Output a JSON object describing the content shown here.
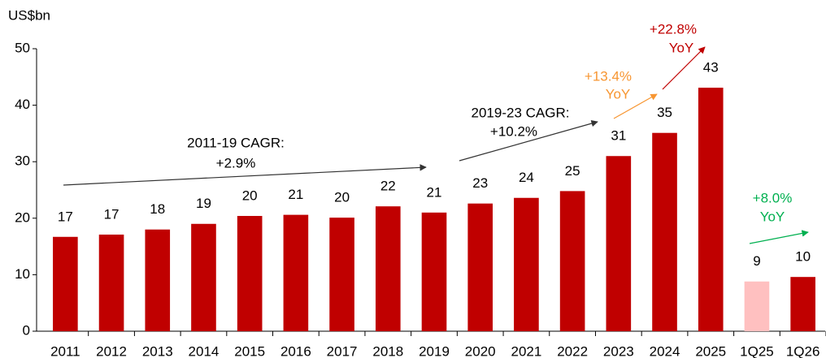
{
  "chart_data": {
    "type": "bar",
    "y_label": "US$bn",
    "categories": [
      "2011",
      "2012",
      "2013",
      "2014",
      "2015",
      "2016",
      "2017",
      "2018",
      "2019",
      "2020",
      "2021",
      "2022",
      "2023",
      "2024",
      "2025",
      "1Q25",
      "1Q26"
    ],
    "values": [
      16.7,
      17.1,
      18.0,
      19.0,
      20.4,
      20.6,
      20.1,
      22.1,
      21.0,
      22.6,
      23.6,
      24.8,
      31.0,
      35.1,
      43.1,
      8.8,
      9.6
    ],
    "value_labels": [
      "17",
      "17",
      "18",
      "19",
      "20",
      "21",
      "20",
      "22",
      "21",
      "23",
      "24",
      "25",
      "31",
      "35",
      "43",
      "9",
      "10"
    ],
    "colors": [
      "#c00000",
      "#c00000",
      "#c00000",
      "#c00000",
      "#c00000",
      "#c00000",
      "#c00000",
      "#c00000",
      "#c00000",
      "#c00000",
      "#c00000",
      "#c00000",
      "#c00000",
      "#c00000",
      "#c00000",
      "#ffc0c0",
      "#c00000"
    ],
    "ylim": [
      0,
      50
    ],
    "yticks": [
      0,
      10,
      20,
      30,
      40,
      50
    ],
    "grid": false,
    "annotations": [
      {
        "lines": [
          "2011-19 CAGR:",
          "+2.9%"
        ],
        "color": "#000000"
      },
      {
        "lines": [
          "2019-23 CAGR:",
          "+10.2%"
        ],
        "color": "#000000"
      },
      {
        "lines": [
          "+13.4%",
          "YoY"
        ],
        "color": "#f79632"
      },
      {
        "lines": [
          "+22.8%",
          "YoY"
        ],
        "color": "#c00000"
      },
      {
        "lines": [
          "+8.0%",
          "YoY"
        ],
        "color": "#00b050"
      }
    ]
  }
}
